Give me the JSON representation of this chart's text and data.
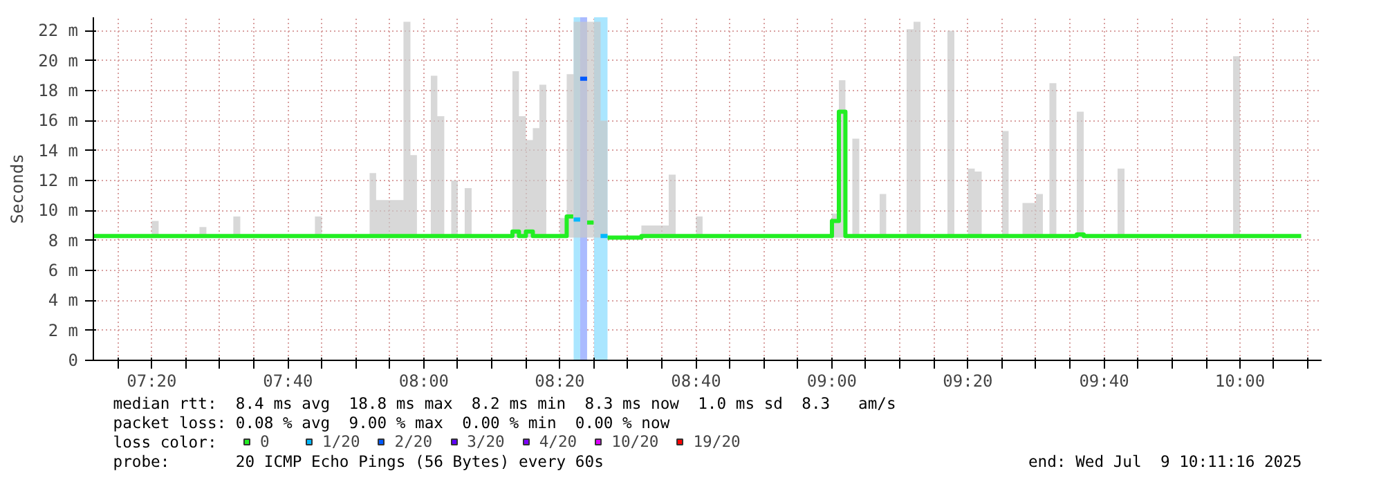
{
  "chart_data": {
    "type": "step",
    "ylabel": "Seconds",
    "legend_title": "loss color:",
    "legend": "bottom",
    "grid": true,
    "marker": "none",
    "line_style": "solid",
    "xlim": [
      7.19,
      10.2
    ],
    "ylim": [
      0,
      22.9
    ],
    "yticks": [
      0,
      {
        "value": 2,
        "label": "2 m"
      },
      {
        "value": 4,
        "label": "4 m"
      },
      {
        "value": 6,
        "label": "6 m"
      },
      {
        "value": 8,
        "label": "8 m"
      },
      {
        "value": 10,
        "label": "10 m"
      },
      {
        "value": 12,
        "label": "12 m"
      },
      {
        "value": 14,
        "label": "14 m"
      },
      {
        "value": 16,
        "label": "16 m"
      },
      {
        "value": 18,
        "label": "18 m"
      },
      {
        "value": 20,
        "label": "20 m"
      },
      {
        "value": 22,
        "label": "22 m"
      }
    ],
    "xticks": [
      {
        "value": 7.25,
        "label": null
      },
      {
        "value": 7.333,
        "label": "07:20"
      },
      {
        "value": 7.417,
        "label": null
      },
      {
        "value": 7.5,
        "label": null
      },
      {
        "value": 7.583,
        "label": null
      },
      {
        "value": 7.667,
        "label": "07:40"
      },
      {
        "value": 7.75,
        "label": null
      },
      {
        "value": 7.833,
        "label": null
      },
      {
        "value": 7.917,
        "label": null
      },
      {
        "value": 8.0,
        "label": "08:00"
      },
      {
        "value": 8.083,
        "label": null
      },
      {
        "value": 8.167,
        "label": null
      },
      {
        "value": 8.25,
        "label": null
      },
      {
        "value": 8.333,
        "label": "08:20"
      },
      {
        "value": 8.417,
        "label": null
      },
      {
        "value": 8.5,
        "label": null
      },
      {
        "value": 8.583,
        "label": null
      },
      {
        "value": 8.667,
        "label": "08:40"
      },
      {
        "value": 8.75,
        "label": null
      },
      {
        "value": 8.833,
        "label": null
      },
      {
        "value": 8.917,
        "label": null
      },
      {
        "value": 9.0,
        "label": "09:00"
      },
      {
        "value": 9.083,
        "label": null
      },
      {
        "value": 9.167,
        "label": null
      },
      {
        "value": 9.25,
        "label": null
      },
      {
        "value": 9.333,
        "label": "09:20"
      },
      {
        "value": 9.417,
        "label": null
      },
      {
        "value": 9.5,
        "label": null
      },
      {
        "value": 9.583,
        "label": null
      },
      {
        "value": 9.667,
        "label": "09:40"
      },
      {
        "value": 9.75,
        "label": null
      },
      {
        "value": 9.833,
        "label": null
      },
      {
        "value": 9.917,
        "label": null
      },
      {
        "value": 10.0,
        "label": "10:00"
      },
      {
        "value": 10.083,
        "label": null
      },
      {
        "value": 10.167,
        "label": null
      }
    ],
    "bands": [
      {
        "axis": "x",
        "from": 8.367,
        "to": 8.383,
        "color": "#aae6ff"
      },
      {
        "axis": "x",
        "from": 8.383,
        "to": 8.4,
        "color": "#aabbff"
      },
      {
        "axis": "x",
        "from": 8.417,
        "to": 8.45,
        "color": "#aae6ff"
      }
    ],
    "series": [
      {
        "name": "0",
        "color": "#22ee22",
        "x": [
          7.19,
          7.333,
          7.35,
          7.45,
          7.467,
          7.533,
          7.55,
          7.733,
          7.75,
          7.867,
          7.883,
          7.933,
          7.95,
          7.967,
          7.983,
          8.017,
          8.033,
          8.05,
          8.067,
          8.083,
          8.1,
          8.117,
          8.217,
          8.233,
          8.25,
          8.267,
          8.283,
          8.3,
          8.333,
          8.35,
          8.366,
          8.367,
          8.383,
          8.4,
          8.416,
          8.417,
          8.433,
          8.45,
          8.533,
          8.6,
          8.617,
          8.667,
          8.683,
          9.0,
          9.017,
          9.033,
          9.05,
          9.067,
          9.117,
          9.133,
          9.183,
          9.2,
          9.217,
          9.283,
          9.3,
          9.333,
          9.35,
          9.367,
          9.417,
          9.433,
          9.467,
          9.5,
          9.517,
          9.533,
          9.55,
          9.6,
          9.617,
          9.7,
          9.717,
          9.983,
          10.0,
          10.15
        ],
        "values": [
          8.3,
          8.3,
          8.3,
          8.3,
          8.3,
          8.3,
          8.3,
          8.3,
          8.3,
          8.3,
          8.3,
          8.3,
          8.3,
          8.3,
          8.3,
          8.3,
          8.3,
          8.3,
          8.3,
          8.3,
          8.3,
          8.3,
          8.6,
          8.3,
          8.6,
          8.3,
          8.3,
          8.3,
          8.3,
          9.6,
          9.6,
          null,
          null,
          9.2,
          9.2,
          null,
          null,
          8.2,
          8.3,
          8.3,
          8.3,
          8.3,
          8.3,
          9.3,
          16.6,
          8.3,
          8.3,
          8.3,
          8.3,
          8.3,
          8.3,
          8.3,
          8.3,
          8.3,
          8.3,
          8.3,
          8.3,
          8.3,
          8.3,
          8.3,
          8.3,
          8.3,
          8.3,
          8.3,
          8.3,
          8.4,
          8.3,
          8.3,
          8.3,
          8.3,
          8.3,
          8.3
        ],
        "lower": [
          8.2,
          8.2,
          8.2,
          8.2,
          8.2,
          8.2,
          8.2,
          8.2,
          8.2,
          8.2,
          8.2,
          8.2,
          8.2,
          8.2,
          8.2,
          8.2,
          8.2,
          8.2,
          8.2,
          8.2,
          8.2,
          8.2,
          8.2,
          8.2,
          8.2,
          8.2,
          8.2,
          8.2,
          8.2,
          8.2,
          8.2,
          8.2,
          8.2,
          8.2,
          8.2,
          8.2,
          8.2,
          8.2,
          8.2,
          8.2,
          8.2,
          8.2,
          8.2,
          8.2,
          8.2,
          8.2,
          8.2,
          8.2,
          8.2,
          8.2,
          8.2,
          8.2,
          8.2,
          8.2,
          8.2,
          8.2,
          8.2,
          8.2,
          8.2,
          8.2,
          8.2,
          8.2,
          8.2,
          8.2,
          8.2,
          8.2,
          8.2,
          8.2,
          8.2,
          8.2,
          8.2,
          8.2
        ],
        "upper": [
          8.3,
          9.3,
          8.3,
          8.9,
          8.3,
          9.6,
          8.3,
          9.6,
          8.3,
          12.5,
          10.7,
          10.7,
          22.6,
          13.7,
          8.3,
          19.0,
          16.3,
          8.3,
          12.0,
          8.3,
          11.5,
          8.3,
          19.3,
          16.3,
          14.7,
          15.5,
          18.4,
          8.3,
          9.5,
          19.1,
          19.1,
          22.6,
          22.6,
          22.6,
          22.6,
          22.6,
          16.0,
          8.3,
          9.0,
          12.4,
          8.3,
          9.6,
          8.3,
          9.8,
          18.7,
          8.3,
          14.8,
          8.3,
          11.1,
          8.3,
          22.1,
          22.6,
          8.3,
          22.0,
          8.3,
          12.8,
          12.6,
          8.3,
          15.3,
          8.3,
          10.5,
          11.1,
          8.3,
          18.5,
          8.3,
          16.6,
          8.3,
          12.8,
          8.3,
          20.3,
          8.3,
          8.3
        ]
      },
      {
        "name": "1/20",
        "color": "#00b8ff",
        "x": [
          8.367,
          8.383,
          8.39,
          8.433,
          8.45
        ],
        "values": [
          9.4,
          9.4,
          null,
          8.3,
          8.3
        ]
      },
      {
        "name": "2/20",
        "color": "#0059ff",
        "x": [
          8.383,
          8.4
        ],
        "values": [
          18.8,
          18.8
        ]
      },
      {
        "name": "3/20",
        "color": "#5e00ff"
      },
      {
        "name": "4/20",
        "color": "#7e00ff"
      },
      {
        "name": "10/20",
        "color": "#dd00ff"
      },
      {
        "name": "19/20",
        "color": "#ff0000"
      }
    ],
    "annotations": [
      "median rtt:  8.4 ms avg  18.8 ms max  8.2 ms min  8.3 ms now  1.0 ms sd  8.3   am/s",
      "packet loss: 0.08 % avg  9.00 % max  0.00 % min  0.00 % now",
      "probe:       20 ICMP Echo Pings (56 Bytes) every 60s",
      "end: Wed Jul  9 10:11:16 2025"
    ]
  }
}
